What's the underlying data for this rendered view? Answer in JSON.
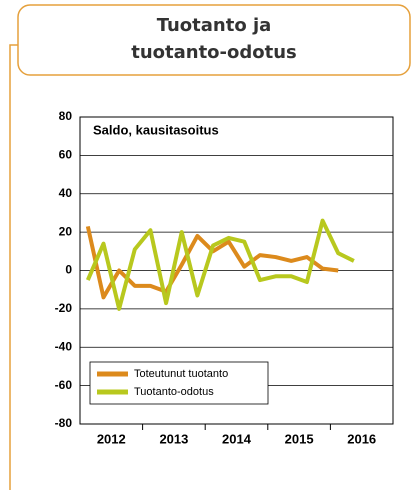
{
  "header": {
    "title_lines": [
      "Tuotanto ja",
      "tuotanto-odotus"
    ]
  },
  "chart_data": {
    "type": "line",
    "subtitle": "Saldo, kausitasoitus",
    "x": [
      2012.125,
      2012.375,
      2012.625,
      2012.875,
      2013.125,
      2013.375,
      2013.625,
      2013.875,
      2014.125,
      2014.375,
      2014.625,
      2014.875,
      2015.125,
      2015.375,
      2015.625,
      2015.875,
      2016.125,
      2016.375
    ],
    "xlim": [
      2012,
      2017
    ],
    "xticks": [
      {
        "value": 2012.5,
        "label": "2012"
      },
      {
        "value": 2013.5,
        "label": "2013"
      },
      {
        "value": 2014.5,
        "label": "2014"
      },
      {
        "value": 2015.5,
        "label": "2015"
      },
      {
        "value": 2016.5,
        "label": "2016"
      }
    ],
    "ylim": [
      -80,
      80
    ],
    "yticks": [
      -80,
      -60,
      -40,
      -20,
      0,
      20,
      40,
      60,
      80
    ],
    "grid": true,
    "legend": "lower left",
    "series": [
      {
        "name": "Toteutunut tuotanto",
        "color": "#dc8a1c",
        "values": [
          23,
          -14,
          0,
          -8,
          -8,
          -11,
          3,
          18,
          10,
          15,
          2,
          8,
          7,
          5,
          7,
          1,
          0,
          null
        ]
      },
      {
        "name": "Tuotanto-odotus",
        "color": "#b8c81e",
        "values": [
          -5,
          14,
          -20,
          11,
          21,
          -17,
          20,
          -13,
          13,
          17,
          15,
          -5,
          -3,
          -3,
          -6,
          26,
          9,
          5
        ]
      }
    ]
  }
}
